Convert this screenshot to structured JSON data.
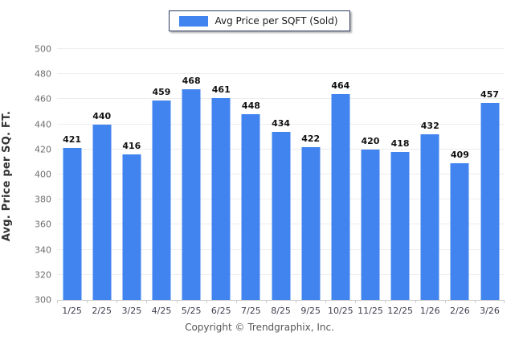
{
  "legend": {
    "label": "Avg Price per SQFT (Sold)",
    "swatch_color": "#4184F0"
  },
  "y_axis": {
    "title": "Avg. Price per SQ. FT."
  },
  "footer": {
    "copyright": "Copyright © Trendgraphix, Inc."
  },
  "colors": {
    "bar": "#4184F0",
    "gridline": "#ededed",
    "axis_line": "#cccccc",
    "y_tick_label": "#6e6e6e",
    "x_tick_label": "#3f3f4f",
    "value_label": "#111111",
    "legend_border": "#2e3c63",
    "footer_text": "#555555",
    "background": "#ffffff"
  },
  "chart_data": {
    "type": "bar",
    "title": "Avg Price per SQFT (Sold)",
    "categories": [
      "1/25",
      "2/25",
      "3/25",
      "4/25",
      "5/25",
      "6/25",
      "7/25",
      "8/25",
      "9/25",
      "10/25",
      "11/25",
      "12/25",
      "1/26",
      "2/26",
      "3/26"
    ],
    "values": [
      421,
      440,
      416,
      459,
      468,
      461,
      448,
      434,
      422,
      464,
      420,
      418,
      432,
      409,
      457
    ],
    "xlabel": "",
    "ylabel": "Avg. Price per SQ. FT.",
    "ylim": [
      300,
      500
    ],
    "ytick_step": 20,
    "grid": true,
    "legend_position": "top-center",
    "value_labels_shown": true
  }
}
